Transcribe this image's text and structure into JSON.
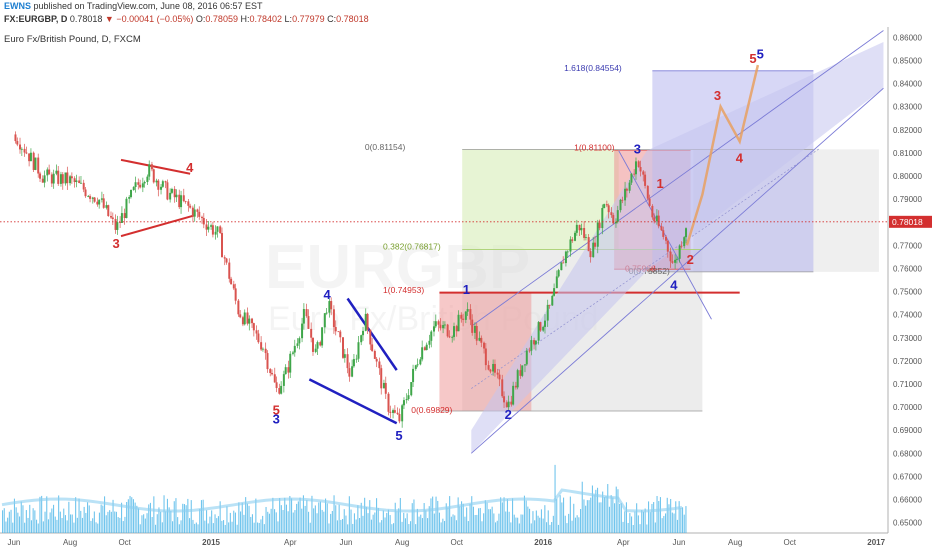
{
  "header": {
    "brand": "EWNS",
    "published": "published on TradingView.com, June 08, 2016 06:57 EST",
    "symbol": "FX:EURGBP, D",
    "last": "0.78018",
    "change": "▼ −0.00041 (−0.05%)",
    "open_label": "O:",
    "open": "0.78059",
    "high_label": "H:",
    "high": "0.78402",
    "low_label": "L:",
    "low": "0.77979",
    "close_label": "C:",
    "close": "0.78018",
    "instrument": "Euro Fx/British Pound, D, FXCM"
  },
  "watermark": {
    "symbol": "EURGBP",
    "name": "Euro Fx/British Pound"
  },
  "chart_data": {
    "type": "candlestick",
    "yaxis": {
      "range": [
        0.6455,
        0.8645
      ],
      "ticks": [
        "0.86000",
        "0.85000",
        "0.84000",
        "0.83000",
        "0.82000",
        "0.81000",
        "0.80000",
        "0.79000",
        "0.78000",
        "0.77000",
        "0.76000",
        "0.75000",
        "0.74000",
        "0.73000",
        "0.72000",
        "0.71000",
        "0.70000",
        "0.69000",
        "0.68000",
        "0.67000",
        "0.66000",
        "0.65000"
      ],
      "last_price_label": "0.78018"
    },
    "xaxis": {
      "labels": [
        "Jun",
        "Aug",
        "Oct",
        "2015",
        "Apr",
        "Jun",
        "Aug",
        "Oct",
        "2016",
        "Apr",
        "Jun",
        "Aug",
        "Oct",
        "2017"
      ]
    },
    "price_path": [
      [
        "2014-06-01",
        0.818
      ],
      [
        "2014-07-01",
        0.8
      ],
      [
        "2014-08-01",
        0.798
      ],
      [
        "2014-09-01",
        0.79
      ],
      [
        "2014-09-20",
        0.777
      ],
      [
        "2014-10-10",
        0.794
      ],
      [
        "2014-10-25",
        0.803
      ],
      [
        "2014-11-15",
        0.793
      ],
      [
        "2014-12-10",
        0.786
      ],
      [
        "2015-01-10",
        0.775
      ],
      [
        "2015-02-01",
        0.742
      ],
      [
        "2015-03-01",
        0.726
      ],
      [
        "2015-03-15",
        0.707
      ],
      [
        "2015-03-25",
        0.714
      ],
      [
        "2015-04-15",
        0.74
      ],
      [
        "2015-04-28",
        0.722
      ],
      [
        "2015-05-10",
        0.745
      ],
      [
        "2015-06-05",
        0.713
      ],
      [
        "2015-06-20",
        0.739
      ],
      [
        "2015-07-15",
        0.701
      ],
      [
        "2015-07-28",
        0.694
      ],
      [
        "2015-08-20",
        0.724
      ],
      [
        "2015-09-05",
        0.735
      ],
      [
        "2015-09-25",
        0.733
      ],
      [
        "2015-10-10",
        0.742
      ],
      [
        "2015-10-25",
        0.727
      ],
      [
        "2015-11-25",
        0.701
      ],
      [
        "2015-12-15",
        0.724
      ],
      [
        "2016-01-10",
        0.743
      ],
      [
        "2016-01-25",
        0.765
      ],
      [
        "2016-02-10",
        0.779
      ],
      [
        "2016-02-25",
        0.767
      ],
      [
        "2016-03-10",
        0.79
      ],
      [
        "2016-03-20",
        0.781
      ],
      [
        "2016-04-05",
        0.796
      ],
      [
        "2016-04-15",
        0.808
      ],
      [
        "2016-05-01",
        0.783
      ],
      [
        "2016-05-15",
        0.773
      ],
      [
        "2016-05-25",
        0.761
      ],
      [
        "2016-06-08",
        0.78
      ]
    ],
    "projection": [
      [
        "2016-06-08",
        0.77
      ],
      [
        "2016-06-25",
        0.792
      ],
      [
        "2016-07-15",
        0.83
      ],
      [
        "2016-08-05",
        0.815
      ],
      [
        "2016-08-25",
        0.848
      ]
    ],
    "price_levels": [
      {
        "label": "0(0.81154)",
        "value": 0.81154
      },
      {
        "label": "1(0.81100)",
        "value": 0.811
      },
      {
        "label": "0.382(0.76817)",
        "value": 0.76817
      },
      {
        "label": "0.75968",
        "value": 0.75968
      },
      {
        "label": "0(0.75852)",
        "value": 0.75852
      },
      {
        "label": "1(0.74953)",
        "value": 0.74953
      },
      {
        "label": "0(0.69829)",
        "value": 0.69829
      },
      {
        "label": "1.618(0.84554)",
        "value": 0.84554
      }
    ],
    "wave_labels": [
      {
        "text": "3",
        "color": "#d32f2f",
        "date": "2014-09-20",
        "y": 0.771
      },
      {
        "text": "4",
        "color": "#d32f2f",
        "date": "2014-12-10",
        "y": 0.804
      },
      {
        "text": "4",
        "color": "#2020c0",
        "date": "2015-05-10",
        "y": 0.749
      },
      {
        "text": "5",
        "color": "#d32f2f",
        "date": "2015-03-15",
        "y": 0.699
      },
      {
        "text": "3",
        "color": "#2020c0",
        "date": "2015-03-15",
        "y": 0.695
      },
      {
        "text": "5",
        "color": "#2020c0",
        "date": "2015-07-28",
        "y": 0.688
      },
      {
        "text": "1",
        "color": "#2020c0",
        "date": "2015-10-10",
        "y": 0.751
      },
      {
        "text": "2",
        "color": "#2020c0",
        "date": "2015-11-25",
        "y": 0.697
      },
      {
        "text": "3",
        "color": "#2020c0",
        "date": "2016-04-15",
        "y": 0.812
      },
      {
        "text": "4",
        "color": "#2020c0",
        "date": "2016-05-25",
        "y": 0.753
      },
      {
        "text": "1",
        "color": "#d32f2f",
        "date": "2016-05-10",
        "y": 0.797
      },
      {
        "text": "2",
        "color": "#d32f2f",
        "date": "2016-06-12",
        "y": 0.764
      },
      {
        "text": "3",
        "color": "#d32f2f",
        "date": "2016-07-12",
        "y": 0.835
      },
      {
        "text": "4",
        "color": "#d32f2f",
        "date": "2016-08-05",
        "y": 0.808
      },
      {
        "text": "5",
        "color": "#d32f2f",
        "date": "2016-08-20",
        "y": 0.851
      },
      {
        "text": "5",
        "color": "#2020c0",
        "date": "2016-08-28",
        "y": 0.853
      }
    ],
    "colors": {
      "candle_up": "#3fa64a",
      "candle_down": "#d9534f",
      "blue_wave": "#2020c0",
      "red_wave": "#d32f2f",
      "volume": "#4db6e8",
      "channel": "#7b7bd6",
      "projection": "#e8a060"
    }
  }
}
